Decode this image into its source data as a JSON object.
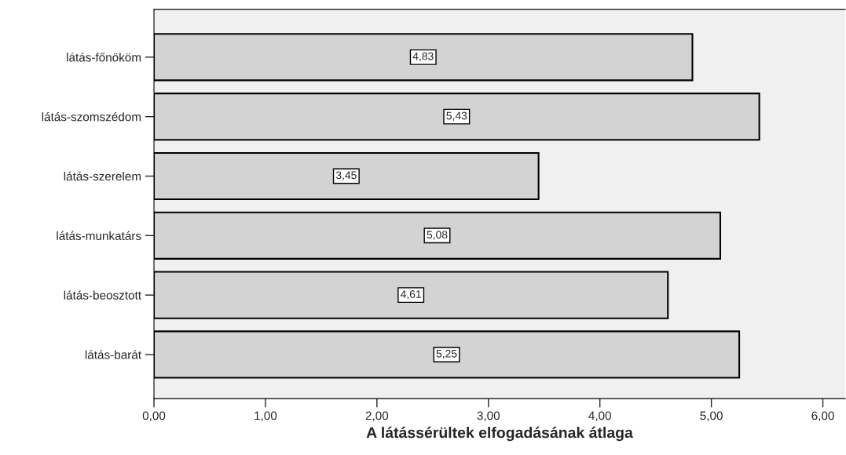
{
  "chart_data": {
    "type": "bar",
    "orientation": "horizontal",
    "xlabel": "A látássérültek elfogadásának átlaga",
    "categories": [
      "látás-főnököm",
      "látás-szomszédom",
      "látás-szerelem",
      "látás-munkatárs",
      "látás-beosztott",
      "látás-barát"
    ],
    "values": [
      4.83,
      5.43,
      3.45,
      5.08,
      4.61,
      5.25
    ],
    "value_labels": [
      "4,83",
      "5,43",
      "3,45",
      "5,08",
      "4,61",
      "5,25"
    ],
    "color": "#d3d3d3",
    "xlim": [
      0,
      6.2
    ],
    "xticks": [
      {
        "value": 0,
        "label": "0,00"
      },
      {
        "value": 1,
        "label": "1,00"
      },
      {
        "value": 2,
        "label": "2,00"
      },
      {
        "value": 3,
        "label": "3,00"
      },
      {
        "value": 4,
        "label": "4,00"
      },
      {
        "value": 5,
        "label": "5,00"
      },
      {
        "value": 6,
        "label": "6,00"
      }
    ],
    "grid": false,
    "legend": false
  }
}
